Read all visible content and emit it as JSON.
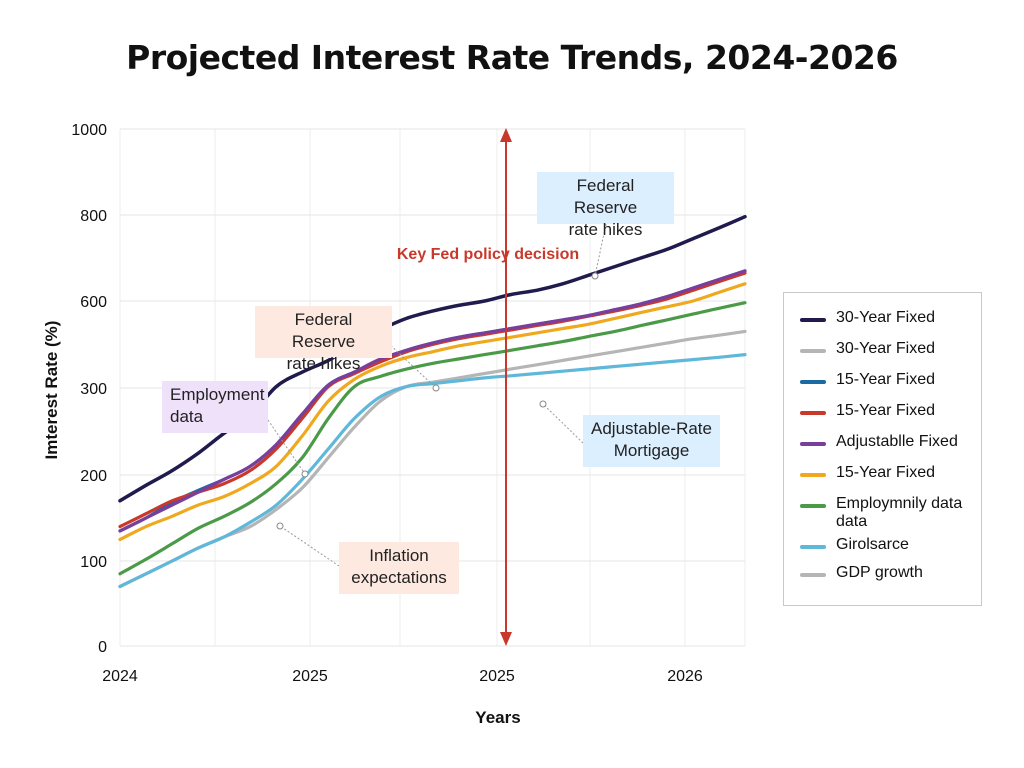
{
  "chart_data": {
    "type": "line",
    "title": "Projected Interest Rate Trends, 2024-2026",
    "xlabel": "Years",
    "ylabel": "Imterest Rate (%)",
    "x_ticks": [
      "2024",
      "2025",
      "2025",
      "2026"
    ],
    "y_ticks": [
      "0",
      "100",
      "200",
      "300",
      "600",
      "800",
      "1000"
    ],
    "grid": true,
    "legend_position": "right",
    "series": [
      {
        "name": "30-Year Fixed",
        "color": "#1f1b4d",
        "values": [
          170,
          188,
          205,
          225,
          248,
          268,
          305,
          355,
          395,
          450,
          500,
          540,
          565,
          585,
          600,
          615,
          625,
          640,
          660,
          680,
          700,
          720,
          745,
          770,
          796
        ]
      },
      {
        "name": "30-Year Fixed",
        "color": "#b5b5b5",
        "values": [
          70,
          85,
          100,
          115,
          128,
          140,
          160,
          185,
          220,
          255,
          285,
          305,
          320,
          335,
          350,
          365,
          380,
          395,
          410,
          425,
          440,
          455,
          470,
          482,
          495
        ]
      },
      {
        "name": "15-Year Fixed",
        "color": "#1a6aa3",
        "values": [
          135,
          150,
          168,
          182,
          195,
          210,
          235,
          270,
          310,
          355,
          395,
          430,
          455,
          475,
          490,
          505,
          520,
          535,
          550,
          570,
          590,
          610,
          630,
          650,
          670
        ]
      },
      {
        "name": "15-Year Fixed",
        "color": "#c9392b",
        "values": [
          140,
          155,
          170,
          180,
          190,
          205,
          230,
          265,
          305,
          350,
          390,
          425,
          450,
          470,
          485,
          500,
          515,
          530,
          548,
          565,
          585,
          605,
          625,
          645,
          665
        ]
      },
      {
        "name": "Adjustablle Fixed",
        "color": "#7a3e9d",
        "values": [
          135,
          150,
          165,
          180,
          195,
          210,
          235,
          270,
          310,
          355,
          400,
          430,
          455,
          475,
          490,
          505,
          520,
          535,
          550,
          570,
          590,
          610,
          630,
          650,
          670
        ]
      },
      {
        "name": "15-Year Fixed",
        "color": "#f0a81e",
        "values": [
          125,
          140,
          152,
          165,
          175,
          190,
          210,
          245,
          285,
          330,
          375,
          405,
          425,
          445,
          460,
          475,
          490,
          505,
          520,
          540,
          560,
          580,
          600,
          620,
          640
        ]
      },
      {
        "name": "Employmnily data data",
        "color": "#4b9a48",
        "values": [
          85,
          102,
          120,
          138,
          152,
          168,
          190,
          220,
          265,
          305,
          340,
          365,
          385,
          400,
          415,
          430,
          445,
          460,
          478,
          495,
          515,
          535,
          555,
          575,
          594
        ]
      },
      {
        "name": "Girolsarce",
        "color": "#5fb7d9",
        "values": [
          70,
          85,
          100,
          115,
          128,
          145,
          165,
          195,
          230,
          265,
          290,
          305,
          315,
          325,
          335,
          342,
          350,
          358,
          366,
          374,
          382,
          390,
          398,
          406,
          415
        ]
      },
      {
        "name": "GDP growth",
        "color": "#b5b5b5",
        "values": null
      }
    ],
    "vertical_marker": {
      "label": "Key Fed policy decision",
      "color": "#c9392b"
    },
    "annotations": [
      {
        "text": [
          "Federal Reserve",
          "rate hikes"
        ],
        "bg": "#dcefff"
      },
      {
        "text": [
          "Federal Reserve",
          "rate hikes"
        ],
        "bg": "#fde9e0"
      },
      {
        "text": [
          "Employment",
          "data"
        ],
        "bg": "#efe1fa"
      },
      {
        "text": [
          "Adjustable-Rate",
          "Mortigage"
        ],
        "bg": "#dcefff"
      },
      {
        "text": [
          "Inflation",
          "expectations"
        ],
        "bg": "#fde9e0"
      }
    ]
  }
}
